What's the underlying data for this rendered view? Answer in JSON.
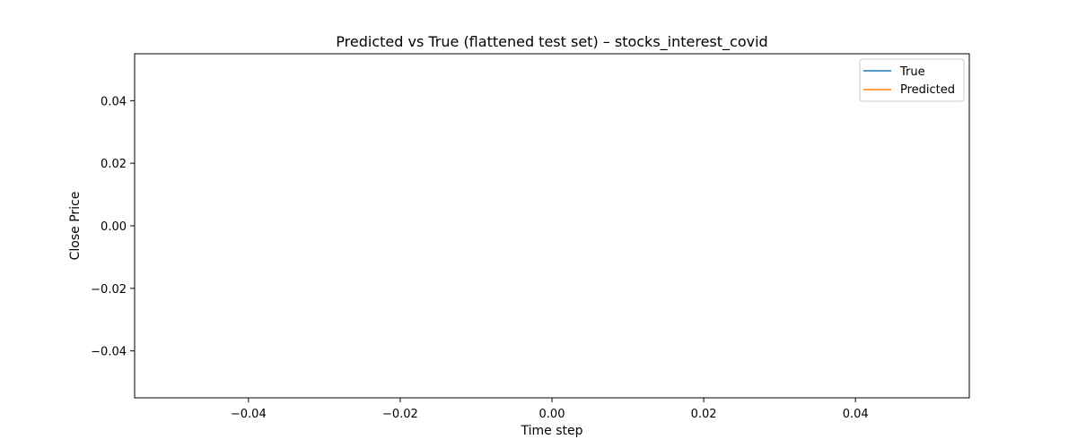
{
  "chart_data": {
    "type": "line",
    "title": "Predicted vs True (flattened test set) – stocks_interest_covid",
    "xlabel": "Time step",
    "ylabel": "Close Price",
    "xlim": [
      -0.055,
      0.055
    ],
    "ylim": [
      -0.055,
      0.055
    ],
    "x_ticks": [
      -0.04,
      -0.02,
      0.0,
      0.02,
      0.04
    ],
    "y_ticks": [
      -0.04,
      -0.02,
      0.0,
      0.02,
      0.04
    ],
    "x_tick_labels": [
      "−0.04",
      "−0.02",
      "0.00",
      "0.02",
      "0.04"
    ],
    "y_tick_labels": [
      "−0.04",
      "−0.02",
      "0.00",
      "0.02",
      "0.04"
    ],
    "grid": false,
    "legend_placement": "top-right",
    "series": [
      {
        "name": "True",
        "color": "#1f77b4",
        "x": [],
        "y": []
      },
      {
        "name": "Predicted",
        "color": "#ff7f0e",
        "x": [],
        "y": []
      }
    ]
  }
}
